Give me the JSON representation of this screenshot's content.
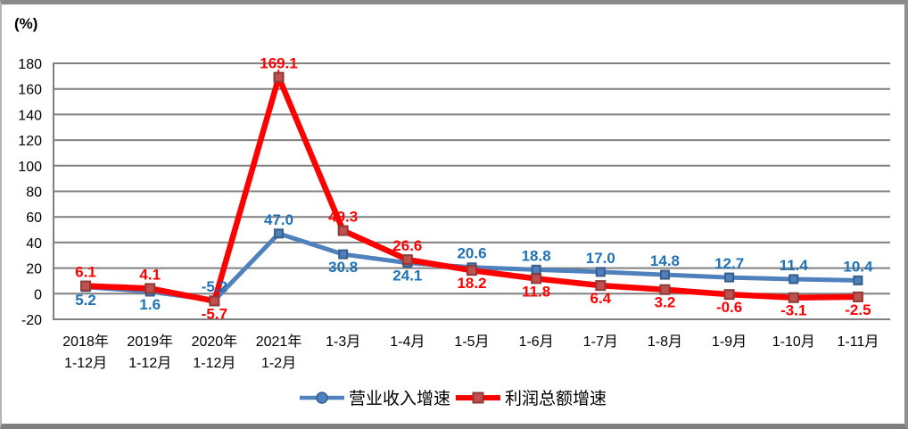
{
  "chart_data": {
    "type": "line",
    "title": "",
    "unit_label": "(%)",
    "xlabel": "",
    "ylabel": "(%)",
    "categories": [
      "2018年\n1-12月",
      "2019年\n1-12月",
      "2020年\n1-12月",
      "2021年\n1-2月",
      "1-3月",
      "1-4月",
      "1-5月",
      "1-6月",
      "1-7月",
      "1-8月",
      "1-9月",
      "1-10月",
      "1-11月"
    ],
    "series": [
      {
        "name": "营业收入增速",
        "values": [
          5.2,
          1.6,
          -5.2,
          47.0,
          30.8,
          24.1,
          20.6,
          18.8,
          17.0,
          14.8,
          12.7,
          11.4,
          10.4
        ],
        "color": "#4F81BD",
        "marker": "square",
        "marker_fill": "#4F81BD",
        "marker_stroke": "#385D8A",
        "legend_marker": "circle",
        "label_color": "#1F72B8",
        "label_positions": [
          "below",
          "below",
          "above",
          "above",
          "below",
          "below",
          "above",
          "above",
          "above",
          "above",
          "above",
          "above",
          "above"
        ]
      },
      {
        "name": "利润总额增速",
        "values": [
          6.1,
          4.1,
          -5.7,
          169.1,
          49.3,
          26.6,
          18.2,
          11.8,
          6.4,
          3.2,
          -0.6,
          -3.1,
          -2.5
        ],
        "color": "#FF0000",
        "marker": "square",
        "marker_fill": "#C0504D",
        "marker_stroke": "#8E3A38",
        "legend_marker": "square",
        "label_color": "#FF0000",
        "label_positions": [
          "above",
          "above",
          "below",
          "above",
          "above",
          "above",
          "below",
          "below",
          "below",
          "below",
          "below",
          "below",
          "below"
        ]
      }
    ],
    "ylim": [
      -20,
      180
    ],
    "ytick_step": 20,
    "grid": true,
    "gridline_color": "#808080",
    "axis_color": "#808080",
    "tick_label_color": "#000000",
    "legend_position": "bottom"
  }
}
